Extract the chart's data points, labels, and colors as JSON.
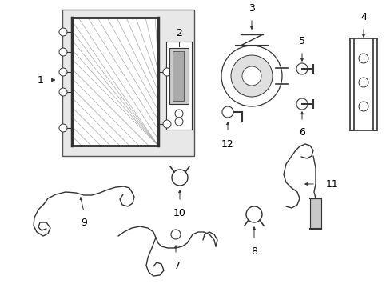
{
  "background_color": "#ffffff",
  "line_color": "#333333",
  "text_color": "#000000",
  "fig_w": 4.89,
  "fig_h": 3.6,
  "dpi": 100
}
